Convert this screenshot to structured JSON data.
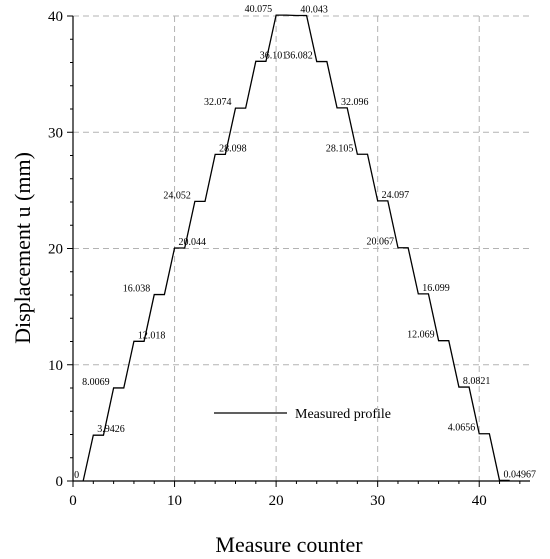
{
  "chart_data": {
    "type": "line",
    "title": "",
    "xlabel": "Measure counter",
    "ylabel": "Displacement u (mm)",
    "xlim": [
      0,
      45
    ],
    "ylim": [
      0,
      40
    ],
    "xticks": [
      "0",
      "10",
      "20",
      "30",
      "40"
    ],
    "yticks": [
      "0",
      "10",
      "20",
      "30",
      "40"
    ],
    "grid": true,
    "legend_placement": "lower-center",
    "series": [
      {
        "name": "Measured profile",
        "color": "#000000",
        "x": [
          1,
          2,
          3,
          4,
          5,
          6,
          7,
          8,
          9,
          10,
          11,
          12,
          13,
          14,
          15,
          16,
          17,
          18,
          19,
          20,
          21,
          22,
          23,
          24,
          25,
          26,
          27,
          28,
          29,
          30,
          31,
          32,
          33,
          34,
          35,
          36,
          37,
          38,
          39,
          40,
          41,
          42,
          43
        ],
        "y": [
          0,
          3.9426,
          3.9426,
          8.0069,
          8.0069,
          12.018,
          12.018,
          16.038,
          16.038,
          20.044,
          20.044,
          24.052,
          24.052,
          28.098,
          28.098,
          32.074,
          32.074,
          36.101,
          36.101,
          40.075,
          40.075,
          40.043,
          40.043,
          36.082,
          36.082,
          32.096,
          32.096,
          28.105,
          28.105,
          24.097,
          24.097,
          20.067,
          20.067,
          16.099,
          16.099,
          12.069,
          12.069,
          8.0821,
          8.0821,
          4.0656,
          4.0656,
          0.04967,
          0.04967
        ]
      }
    ],
    "data_labels": [
      {
        "text": "0",
        "x": 1,
        "y": 0,
        "anchor": "end"
      },
      {
        "text": "3.9426",
        "x": 2,
        "y": 3.9426,
        "anchor": "start"
      },
      {
        "text": "8.0069",
        "x": 4,
        "y": 8.0069,
        "anchor": "end"
      },
      {
        "text": "12.018",
        "x": 6,
        "y": 12.018,
        "anchor": "start"
      },
      {
        "text": "16.038",
        "x": 8,
        "y": 16.038,
        "anchor": "end"
      },
      {
        "text": "20.044",
        "x": 10,
        "y": 20.044,
        "anchor": "start"
      },
      {
        "text": "24.052",
        "x": 12,
        "y": 24.052,
        "anchor": "end"
      },
      {
        "text": "28.098",
        "x": 14,
        "y": 28.098,
        "anchor": "start"
      },
      {
        "text": "32.074",
        "x": 16,
        "y": 32.074,
        "anchor": "end"
      },
      {
        "text": "36.101",
        "x": 18,
        "y": 36.101,
        "anchor": "start"
      },
      {
        "text": "40.075",
        "x": 20,
        "y": 40.075,
        "anchor": "end"
      },
      {
        "text": "40.043",
        "x": 22,
        "y": 40.043,
        "anchor": "start"
      },
      {
        "text": "36.082",
        "x": 24,
        "y": 36.082,
        "anchor": "end"
      },
      {
        "text": "32.096",
        "x": 26,
        "y": 32.096,
        "anchor": "start"
      },
      {
        "text": "28.105",
        "x": 28,
        "y": 28.105,
        "anchor": "end"
      },
      {
        "text": "24.097",
        "x": 30,
        "y": 24.097,
        "anchor": "start"
      },
      {
        "text": "20.067",
        "x": 32,
        "y": 20.067,
        "anchor": "end"
      },
      {
        "text": "16.099",
        "x": 34,
        "y": 16.099,
        "anchor": "start"
      },
      {
        "text": "12.069",
        "x": 36,
        "y": 12.069,
        "anchor": "end"
      },
      {
        "text": "8.0821",
        "x": 38,
        "y": 8.0821,
        "anchor": "start"
      },
      {
        "text": "4.0656",
        "x": 40,
        "y": 4.0656,
        "anchor": "end"
      },
      {
        "text": "0.04967",
        "x": 42,
        "y": 0.04967,
        "anchor": "start"
      }
    ]
  }
}
